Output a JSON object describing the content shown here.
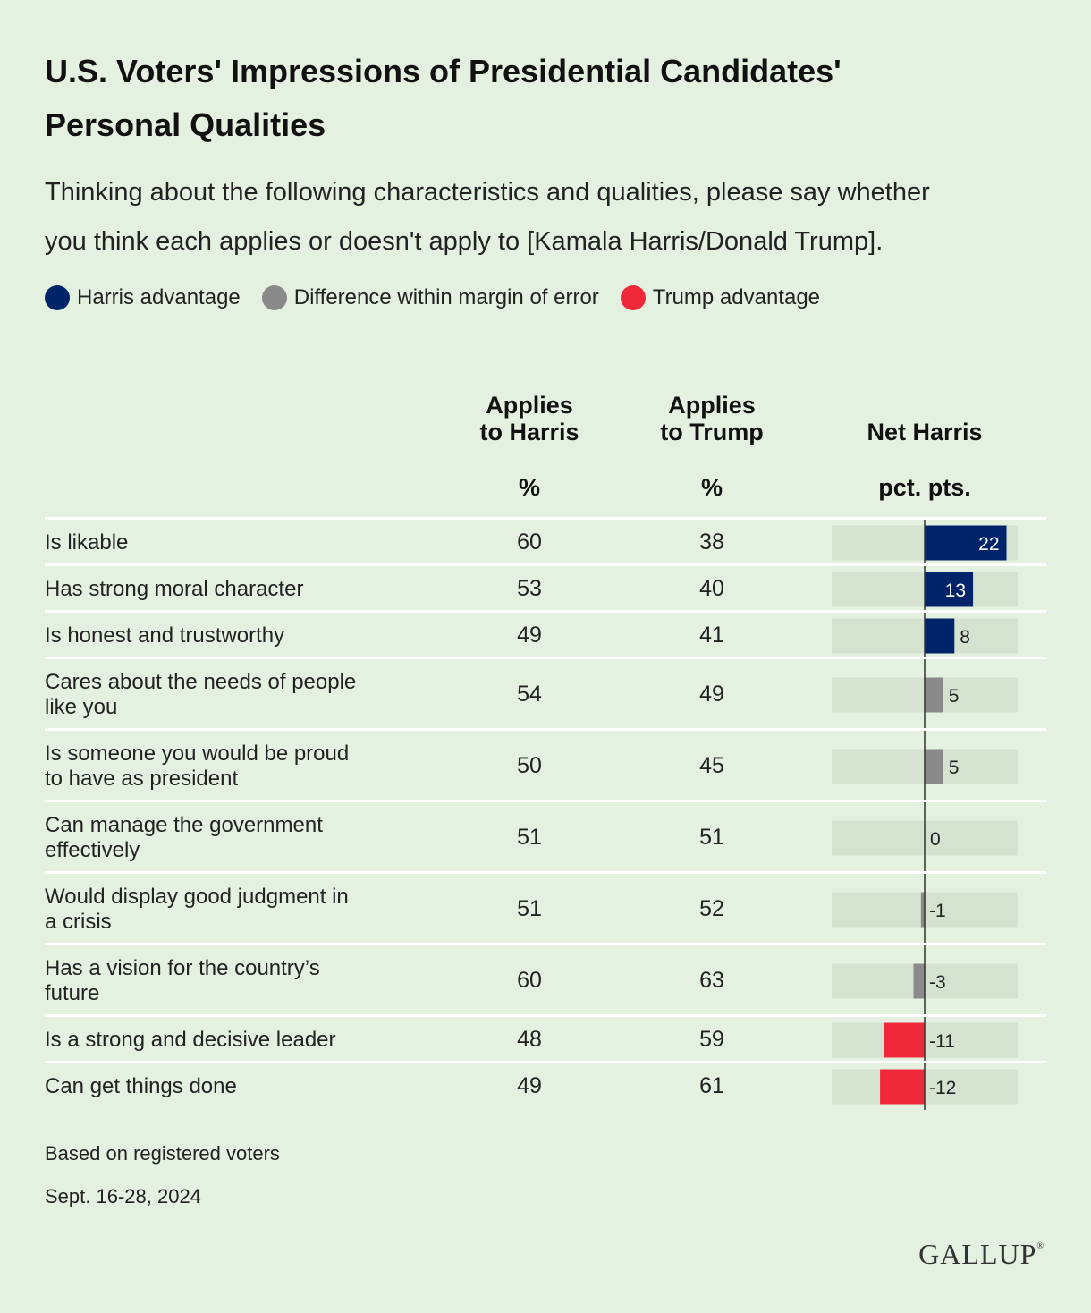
{
  "title_line1": "U.S. Voters' Impressions of Presidential Candidates'",
  "title_line2": "Personal Qualities",
  "subtitle_line1": "Thinking about the following characteristics and qualities, please say whether",
  "subtitle_line2": "you think each applies or doesn't apply to [Kamala Harris/Donald Trump].",
  "legend": [
    {
      "label": "Harris advantage",
      "color": "#002469"
    },
    {
      "label": "Difference within margin of error",
      "color": "#8a8a8a"
    },
    {
      "label": "Trump advantage",
      "color": "#f0293a"
    }
  ],
  "columns": {
    "harris_line1": "Applies",
    "harris_line2": "to Harris",
    "trump_line1": "Applies",
    "trump_line2": "to Trump",
    "net": "Net Harris",
    "harris_unit": "%",
    "trump_unit": "%",
    "net_unit": "pct. pts."
  },
  "chart_data": {
    "type": "bar",
    "categories": [
      [
        "Is likable"
      ],
      [
        "Has strong moral character"
      ],
      [
        "Is honest and trustworthy"
      ],
      [
        "Cares about the needs of people",
        "like you"
      ],
      [
        "Is someone you would be proud",
        "to have as president"
      ],
      [
        "Can manage the government",
        "effectively"
      ],
      [
        "Would display good judgment in",
        "a crisis"
      ],
      [
        "Has a vision for the country’s",
        "future"
      ],
      [
        "Is a strong and decisive leader"
      ],
      [
        "Can get things done"
      ]
    ],
    "applies_to_harris": [
      60,
      53,
      49,
      54,
      50,
      51,
      51,
      60,
      48,
      49
    ],
    "applies_to_trump": [
      38,
      40,
      41,
      49,
      45,
      51,
      52,
      63,
      59,
      61
    ],
    "net_harris": [
      22,
      13,
      8,
      5,
      5,
      0,
      -1,
      -3,
      -11,
      -12
    ],
    "net_labels": [
      "22",
      "13",
      "8",
      "5",
      "5",
      "0",
      "-1",
      "-3",
      "-11",
      "-12"
    ],
    "status": [
      "harris",
      "harris",
      "harris",
      "moe",
      "moe",
      "moe",
      "moe",
      "moe",
      "trump",
      "trump"
    ],
    "status_colors": {
      "harris": "#002469",
      "moe": "#8a8a8a",
      "trump": "#f0293a"
    },
    "xlim": [
      -25,
      25
    ]
  },
  "footnote1": "Based on registered voters",
  "footnote2": "Sept. 16-28, 2024",
  "logo": "GALLUP"
}
